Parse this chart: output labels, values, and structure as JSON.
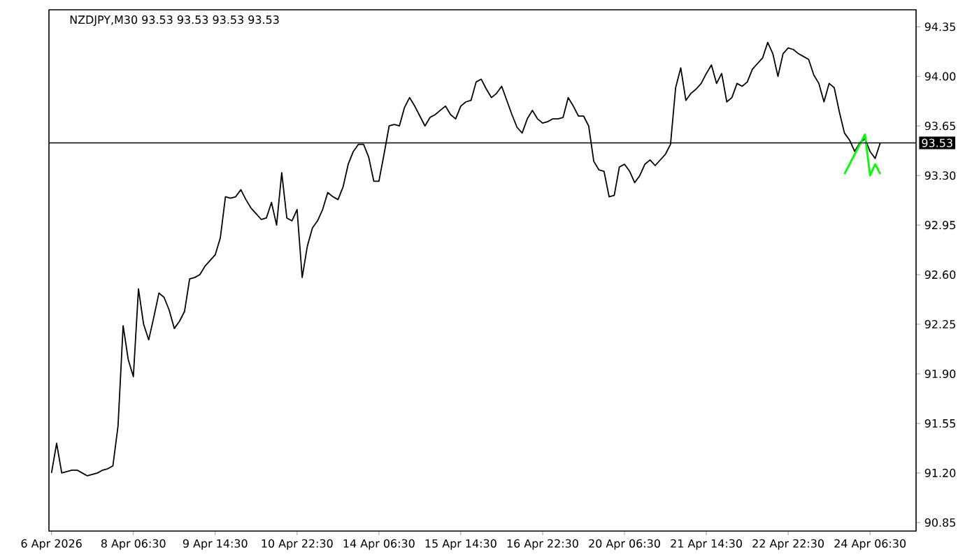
{
  "chart_data": {
    "type": "line",
    "title": "NZDJPY,M30  93.53 93.53 93.53 93.53",
    "categories": [
      "6 Apr 2026",
      null,
      null,
      null,
      null,
      null,
      null,
      null,
      null,
      null,
      null,
      null,
      null,
      null,
      null,
      null,
      "8 Apr 06:30",
      null,
      null,
      null,
      null,
      null,
      null,
      null,
      null,
      null,
      null,
      null,
      null,
      null,
      null,
      null,
      "9 Apr 14:30",
      null,
      null,
      null,
      null,
      null,
      null,
      null,
      null,
      null,
      null,
      null,
      null,
      null,
      null,
      null,
      "10 Apr 22:30",
      null,
      null,
      null,
      null,
      null,
      null,
      null,
      null,
      null,
      null,
      null,
      null,
      null,
      null,
      null,
      "14 Apr 06:30",
      null,
      null,
      null,
      null,
      null,
      null,
      null,
      null,
      null,
      null,
      null,
      null,
      null,
      null,
      null,
      "15 Apr 14:30",
      null,
      null,
      null,
      null,
      null,
      null,
      null,
      null,
      null,
      null,
      null,
      null,
      null,
      null,
      null,
      "16 Apr 22:30",
      null,
      null,
      null,
      null,
      null,
      null,
      null,
      null,
      null,
      null,
      null,
      null,
      null,
      null,
      null,
      "20 Apr 06:30",
      null,
      null,
      null,
      null,
      null,
      null,
      null,
      null,
      null,
      null,
      null,
      null,
      null,
      null,
      null,
      "21 Apr 14:30",
      null,
      null,
      null,
      null,
      null,
      null,
      null,
      null,
      null,
      null,
      null,
      null,
      null,
      null,
      null,
      "22 Apr 22:30",
      null,
      null,
      null,
      null,
      null,
      null,
      null,
      null,
      null,
      null,
      null,
      null,
      null,
      null,
      null,
      "24 Apr 06:30",
      null,
      null
    ],
    "ylim": [
      90.79,
      94.47
    ],
    "yticks": [
      {
        "value": 90.85,
        "label": "90.85"
      },
      {
        "value": 91.2,
        "label": "91.20"
      },
      {
        "value": 91.55,
        "label": "91.55"
      },
      {
        "value": 91.9,
        "label": "91.90"
      },
      {
        "value": 92.25,
        "label": "92.25"
      },
      {
        "value": 92.6,
        "label": "92.60"
      },
      {
        "value": 92.95,
        "label": "92.95"
      },
      {
        "value": 93.3,
        "label": "93.30"
      },
      {
        "value": 93.65,
        "label": "93.65"
      },
      {
        "value": 94.0,
        "label": "94.00"
      },
      {
        "value": 94.35,
        "label": "94.35"
      }
    ],
    "ref_lines": [
      {
        "axis": "y",
        "value": 93.53,
        "label": "93.53",
        "color": "#000000"
      }
    ],
    "marker": "none",
    "line_style": "solid",
    "series": [
      {
        "color": "#000000",
        "values": [
          91.2,
          91.41,
          91.2,
          91.21,
          91.22,
          91.22,
          91.2,
          91.18,
          91.19,
          91.2,
          91.22,
          91.23,
          91.25,
          91.53,
          92.24,
          92.0,
          91.88,
          92.5,
          92.25,
          92.14,
          92.3,
          92.47,
          92.44,
          92.35,
          92.22,
          92.27,
          92.34,
          92.57,
          92.58,
          92.6,
          92.66,
          92.7,
          92.74,
          92.86,
          93.15,
          93.14,
          93.15,
          93.2,
          93.13,
          93.07,
          93.03,
          92.99,
          93.0,
          93.11,
          92.95,
          93.32,
          93.0,
          92.98,
          93.06,
          92.58,
          92.8,
          92.93,
          92.98,
          93.06,
          93.18,
          93.15,
          93.13,
          93.22,
          93.38,
          93.47,
          93.52,
          93.52,
          93.43,
          93.26,
          93.26,
          93.45,
          93.65,
          93.66,
          93.65,
          93.78,
          93.85,
          93.79,
          93.72,
          93.65,
          93.71,
          93.73,
          93.76,
          93.79,
          93.73,
          93.7,
          93.79,
          93.82,
          93.83,
          93.96,
          93.98,
          93.91,
          93.85,
          93.88,
          93.93,
          93.83,
          93.73,
          93.64,
          93.6,
          93.7,
          93.76,
          93.7,
          93.67,
          93.68,
          93.7,
          93.7,
          93.71,
          93.85,
          93.79,
          93.72,
          93.72,
          93.65,
          93.4,
          93.34,
          93.33,
          93.15,
          93.16,
          93.36,
          93.38,
          93.33,
          93.25,
          93.3,
          93.38,
          93.41,
          93.37,
          93.41,
          93.45,
          93.52,
          93.92,
          94.06,
          93.83,
          93.88,
          93.91,
          93.95,
          94.02,
          94.08,
          93.95,
          94.02,
          93.82,
          93.85,
          93.95,
          93.93,
          93.96,
          94.05,
          94.09,
          94.13,
          94.24,
          94.16,
          94.0,
          94.16,
          94.2,
          94.19,
          94.16,
          94.14,
          94.12,
          94.01,
          93.95,
          93.82,
          93.95,
          93.92,
          93.75,
          93.6,
          93.55,
          93.47,
          93.53,
          93.56,
          93.47,
          93.42,
          93.53
        ]
      },
      {
        "color": "#00ff00",
        "values": [
          null,
          null,
          null,
          null,
          null,
          null,
          null,
          null,
          null,
          null,
          null,
          null,
          null,
          null,
          null,
          null,
          null,
          null,
          null,
          null,
          null,
          null,
          null,
          null,
          null,
          null,
          null,
          null,
          null,
          null,
          null,
          null,
          null,
          null,
          null,
          null,
          null,
          null,
          null,
          null,
          null,
          null,
          null,
          null,
          null,
          null,
          null,
          null,
          null,
          null,
          null,
          null,
          null,
          null,
          null,
          null,
          null,
          null,
          null,
          null,
          null,
          null,
          null,
          null,
          null,
          null,
          null,
          null,
          null,
          null,
          null,
          null,
          null,
          null,
          null,
          null,
          null,
          null,
          null,
          null,
          null,
          null,
          null,
          null,
          null,
          null,
          null,
          null,
          null,
          null,
          null,
          null,
          null,
          null,
          null,
          null,
          null,
          null,
          null,
          null,
          null,
          null,
          null,
          null,
          null,
          null,
          null,
          null,
          null,
          null,
          null,
          null,
          null,
          null,
          null,
          null,
          null,
          null,
          null,
          null,
          null,
          null,
          null,
          null,
          null,
          null,
          null,
          null,
          null,
          null,
          null,
          null,
          null,
          null,
          null,
          null,
          null,
          null,
          null,
          null,
          null,
          null,
          null,
          null,
          null,
          null,
          null,
          null,
          null,
          null,
          null,
          null,
          null,
          null,
          null,
          93.31,
          93.38,
          93.45,
          93.52,
          93.59,
          93.3,
          93.38,
          93.31
        ]
      }
    ]
  }
}
